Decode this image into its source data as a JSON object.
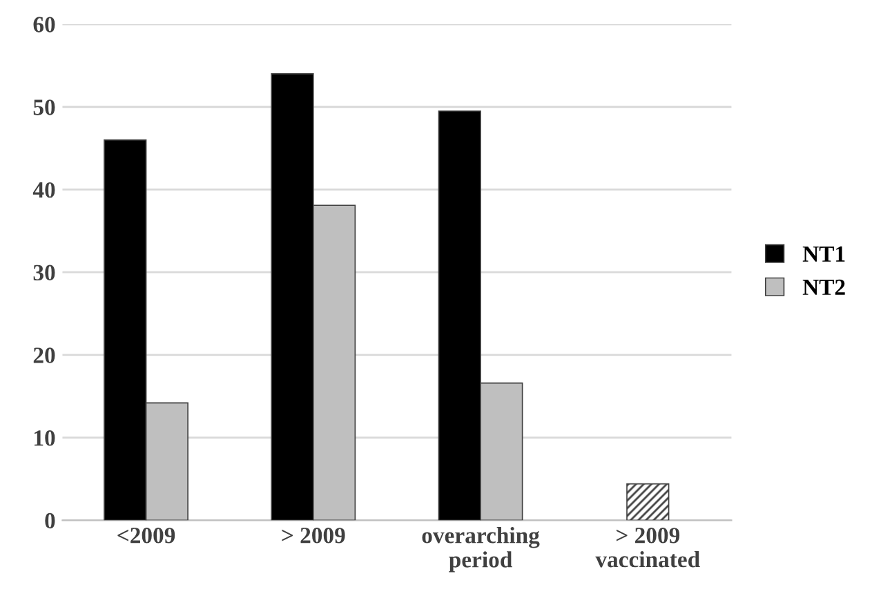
{
  "chart_data": {
    "type": "bar",
    "categories": [
      "<2009",
      "> 2009",
      "overarching\nperiod",
      "> 2009\nvaccinated"
    ],
    "series": [
      {
        "name": "NT1",
        "color": "#000000",
        "colors": [
          "#000000",
          "#000000",
          "#000000",
          "#404040"
        ],
        "values": [
          46.0,
          54.0,
          49.5,
          4.4
        ]
      },
      {
        "name": "NT2",
        "color": "#bfbfbf",
        "values": [
          14.2,
          38.1,
          16.6,
          null
        ]
      }
    ],
    "ylim": [
      0,
      60
    ],
    "yticks": [
      0,
      10,
      20,
      30,
      40,
      50,
      60
    ],
    "grid": "y",
    "legend": "right"
  }
}
